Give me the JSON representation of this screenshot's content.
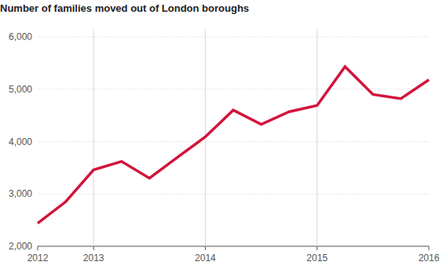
{
  "chart_data": {
    "type": "line",
    "title": "Number of families moved out of London boroughs",
    "categories": [
      "2012",
      null,
      "2013",
      null,
      null,
      null,
      "2014",
      null,
      null,
      null,
      "2015",
      null,
      null,
      null,
      "2016"
    ],
    "values": [
      2440,
      2850,
      3460,
      3620,
      3300,
      3700,
      4090,
      4600,
      4330,
      4570,
      4690,
      5430,
      4900,
      4820,
      5180
    ],
    "color": "#d2143c",
    "ylim": [
      2000,
      6000
    ],
    "yticks": [
      {
        "value": 2000,
        "label": "2,000"
      },
      {
        "value": 3000,
        "label": "3,000"
      },
      {
        "value": 4000,
        "label": "4,000"
      },
      {
        "value": 5000,
        "label": "5,000"
      },
      {
        "value": 6000,
        "label": "6,000"
      }
    ],
    "grid": true
  }
}
